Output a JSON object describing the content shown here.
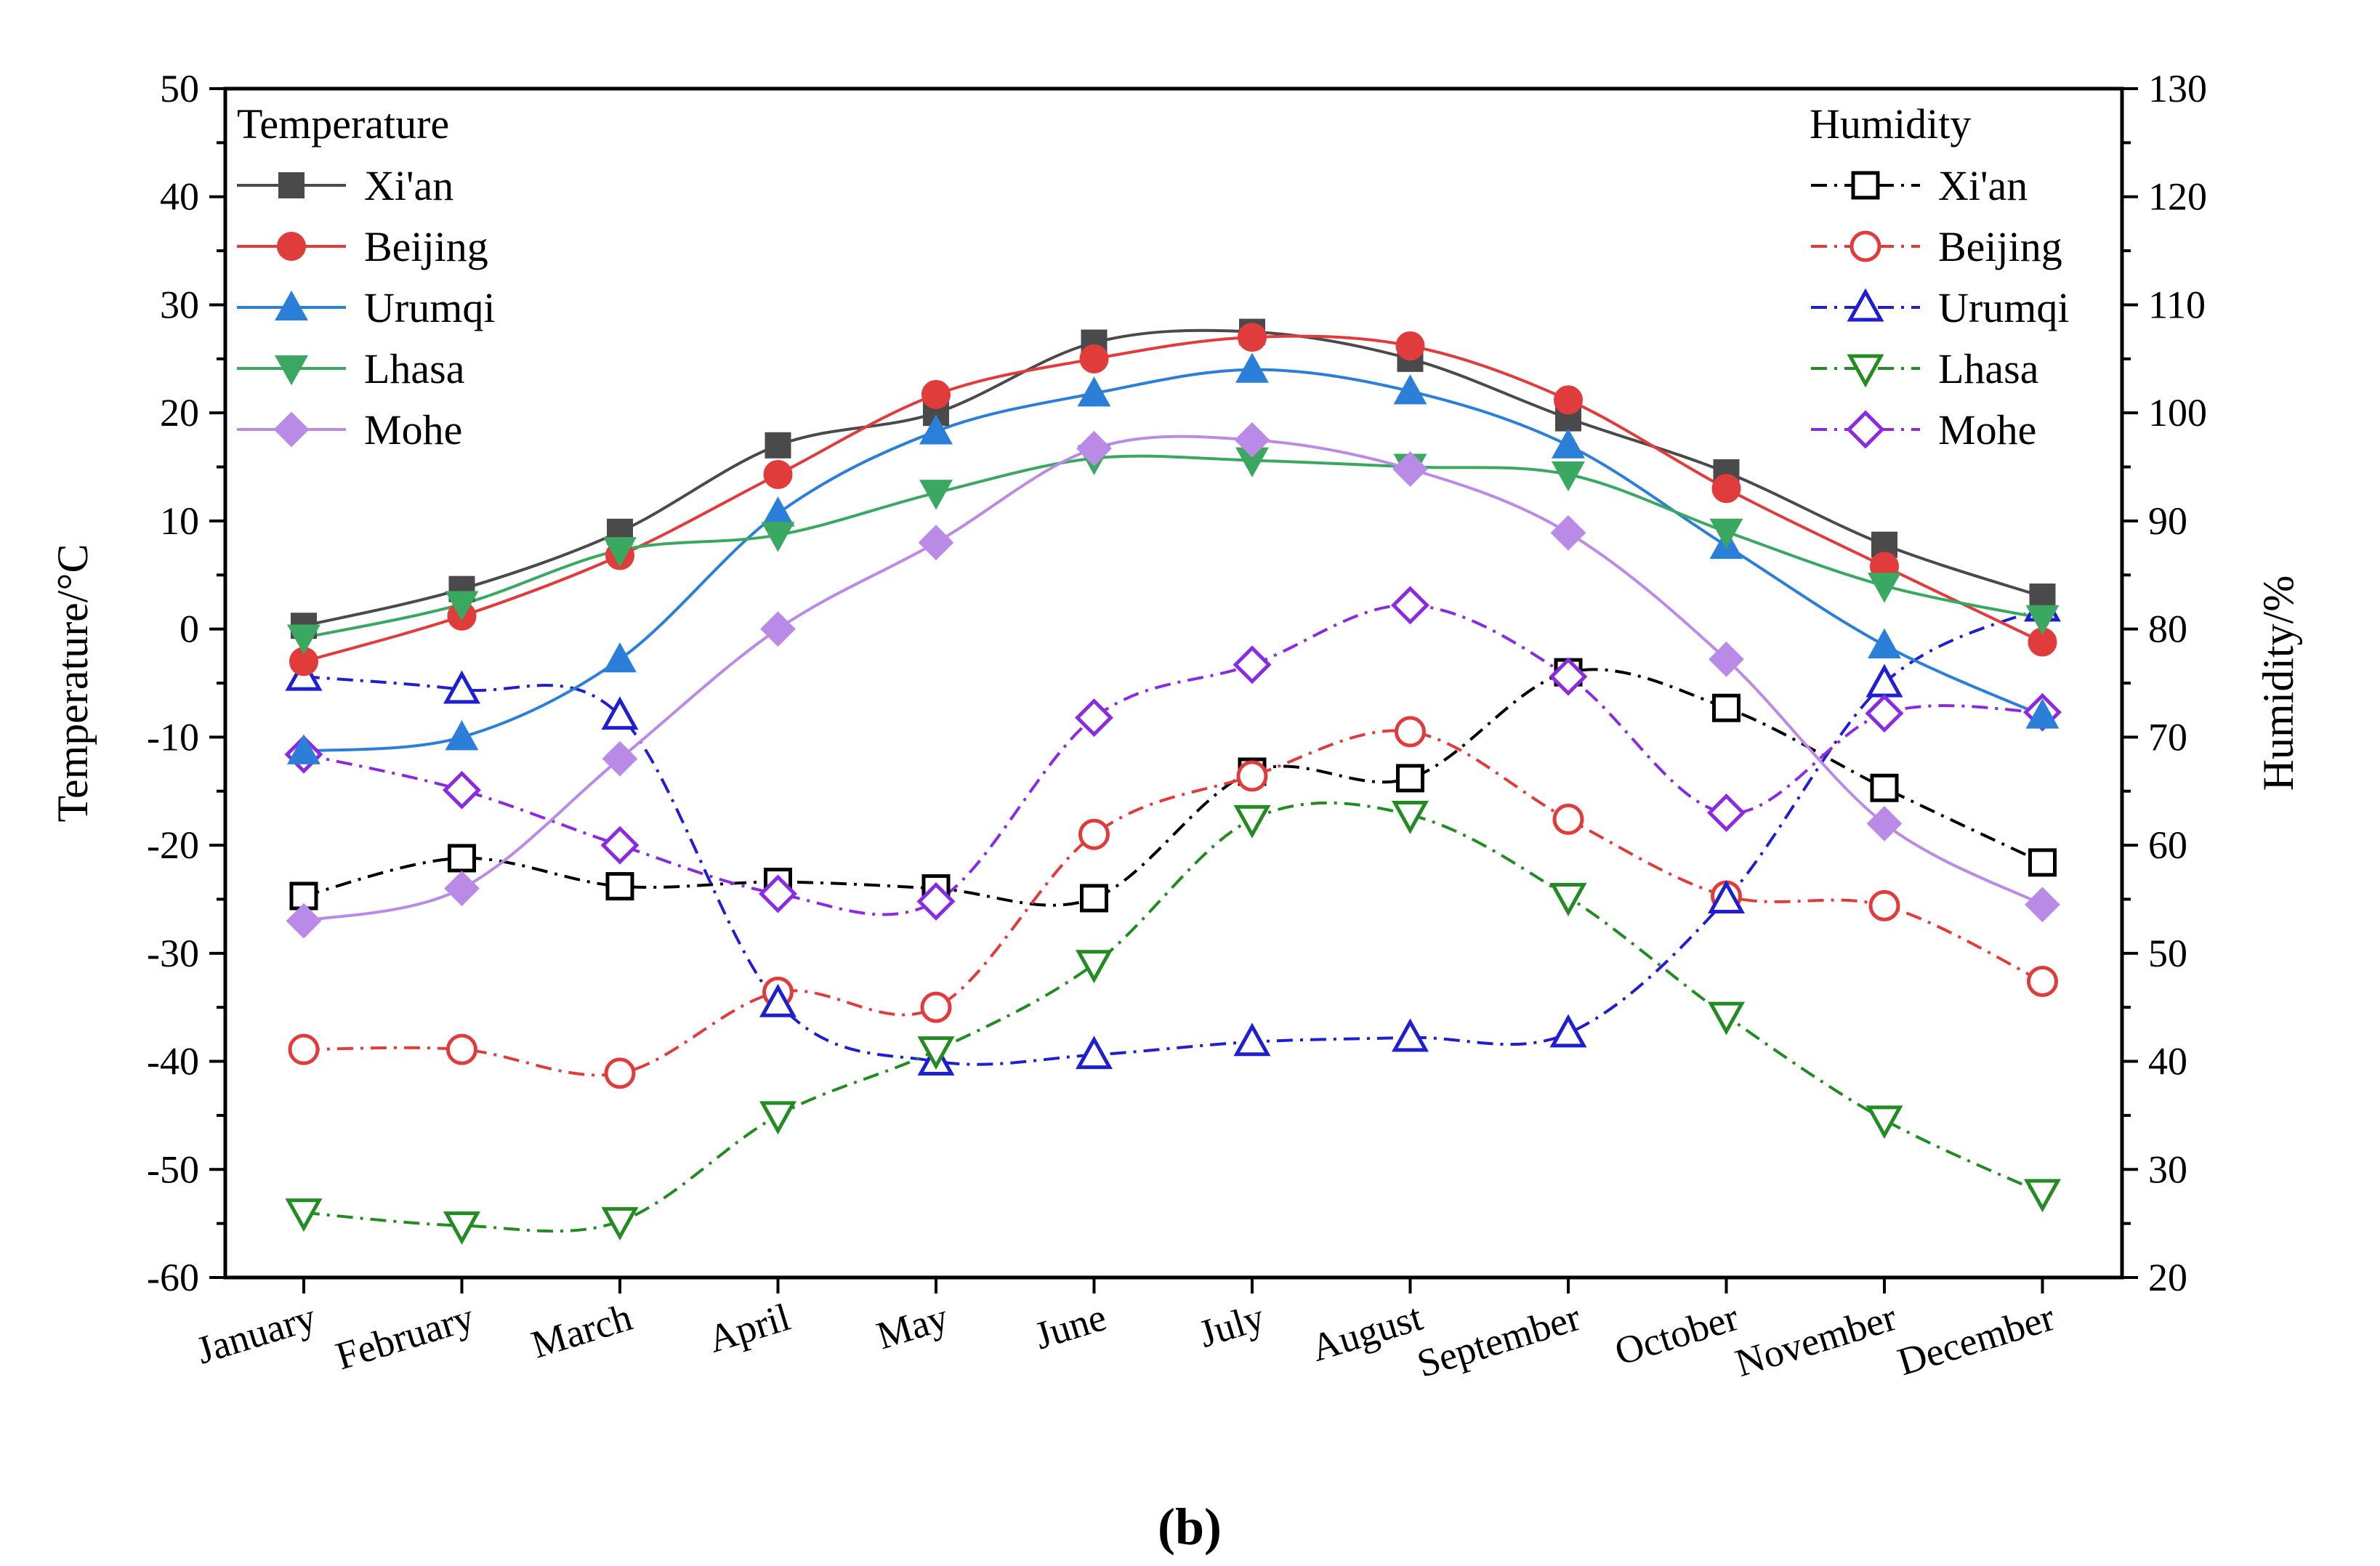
{
  "chart_data": {
    "type": "line",
    "panel_label": "(b)",
    "categories": [
      "January",
      "February",
      "March",
      "April",
      "May",
      "June",
      "July",
      "August",
      "September",
      "October",
      "November",
      "December"
    ],
    "ylabel_left": "Temperature/°C",
    "ylabel_right": "Humidity/%",
    "ylim_left": [
      -60,
      50
    ],
    "ylim_right": [
      20,
      130
    ],
    "yticks_left": [
      "50",
      "40",
      "30",
      "20",
      "10",
      "0",
      "-10",
      "-20",
      "-30",
      "-40",
      "-50",
      "-60"
    ],
    "yticks_right": [
      "130",
      "120",
      "110",
      "100",
      "90",
      "80",
      "70",
      "60",
      "50",
      "40",
      "30",
      "20"
    ],
    "grid": false,
    "temperature_legend": {
      "title": "Temperature",
      "position": "top-left",
      "entries": [
        "Xi'an",
        "Beijing",
        "Urumqi",
        "Lhasa",
        "Mohe"
      ]
    },
    "humidity_legend": {
      "title": "Humidity",
      "position": "top-right",
      "entries": [
        "Xi'an",
        "Beijing",
        "Urumqi",
        "Lhasa",
        "Mohe"
      ]
    },
    "temperature_series": [
      {
        "name": "Xi'an",
        "color": "#4a4a4a",
        "marker": "square",
        "values": [
          0.3,
          3.7,
          9.0,
          17.0,
          20.0,
          26.5,
          27.5,
          25.0,
          19.5,
          14.5,
          7.8,
          3.0
        ]
      },
      {
        "name": "Beijing",
        "color": "#e03c3c",
        "marker": "circle",
        "values": [
          -3.0,
          1.2,
          6.8,
          14.3,
          21.7,
          25.0,
          27.0,
          26.2,
          21.2,
          13.0,
          5.8,
          -1.2
        ]
      },
      {
        "name": "Urumqi",
        "color": "#2b7fd8",
        "marker": "triangle-up",
        "values": [
          -11.3,
          -10.0,
          -2.8,
          10.7,
          18.3,
          21.8,
          24.0,
          22.0,
          17.0,
          7.7,
          -1.5,
          -8.0
        ]
      },
      {
        "name": "Lhasa",
        "color": "#3aa860",
        "marker": "triangle-down",
        "values": [
          -0.8,
          2.3,
          7.3,
          8.7,
          12.6,
          15.8,
          15.6,
          15.0,
          14.3,
          9.0,
          4.0,
          1.0
        ]
      },
      {
        "name": "Mohe",
        "color": "#b98ae6",
        "marker": "diamond",
        "values": [
          -27.0,
          -24.0,
          -12.0,
          0.0,
          8.0,
          16.7,
          17.5,
          14.8,
          8.9,
          -2.8,
          -18.0,
          -25.5
        ]
      }
    ],
    "humidity_series": [
      {
        "name": "Xi'an",
        "color": "#000000",
        "marker": "square",
        "values": [
          55.3,
          58.8,
          56.2,
          56.6,
          56.0,
          55.1,
          66.8,
          66.2,
          76.0,
          72.7,
          65.3,
          58.4
        ]
      },
      {
        "name": "Beijing",
        "color": "#e03c3c",
        "marker": "circle",
        "values": [
          41.1,
          41.1,
          38.9,
          46.4,
          45.0,
          61.0,
          66.4,
          70.5,
          62.4,
          55.3,
          54.4,
          47.4
        ]
      },
      {
        "name": "Urumqi",
        "color": "#1f1fcf",
        "marker": "triangle-up",
        "values": [
          75.6,
          74.4,
          72.0,
          45.4,
          40.0,
          40.6,
          41.8,
          42.2,
          42.6,
          55.0,
          75.0,
          82.0
        ]
      },
      {
        "name": "Lhasa",
        "color": "#228b22",
        "marker": "triangle-down",
        "values": [
          26.0,
          24.8,
          25.2,
          35.0,
          41.0,
          49.0,
          62.4,
          62.8,
          55.2,
          44.2,
          34.6,
          27.8
        ]
      },
      {
        "name": "Mohe",
        "color": "#8a2be2",
        "marker": "diamond",
        "values": [
          68.4,
          65.1,
          60.0,
          55.5,
          54.8,
          71.8,
          76.7,
          82.2,
          75.6,
          63.0,
          72.2,
          72.3
        ]
      }
    ]
  }
}
